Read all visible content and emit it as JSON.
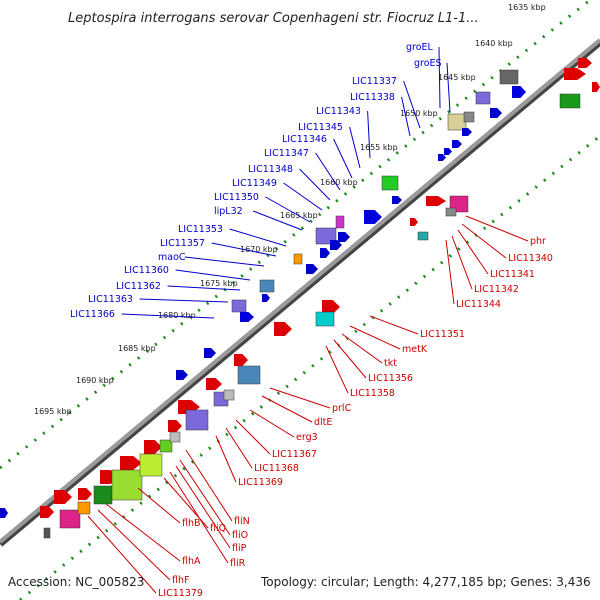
{
  "title": "Leptospira interrogans serovar Copenhageni str. Fiocruz L1-1...",
  "footer": {
    "accession": "Accession: NC_005823",
    "summary": "Topology: circular; Length: 4,277,185 bp; Genes: 3,436"
  },
  "colors": {
    "backbone": "#808080",
    "forward_track": "#1a8a1a",
    "blue_label": "#0000cc",
    "red_label": "#cc0000"
  },
  "ticks": [
    "1635 kbp",
    "1640 kbp",
    "1645 kbp",
    "1650 kbp",
    "1655 kbp",
    "1660 kbp",
    "1665 kbp",
    "1670 kbp",
    "1675 kbp",
    "1680 kbp",
    "1685 kbp",
    "1690 kbp",
    "1695 kbp"
  ],
  "labels_top": [
    "groEL",
    "groES",
    "LIC11337",
    "LIC11338",
    "LIC11343",
    "LIC11345",
    "LIC11346",
    "LIC11347",
    "LIC11348",
    "LIC11349",
    "LIC11350",
    "lipL32",
    "LIC11353",
    "LIC11357",
    "maoC",
    "LIC11360",
    "LIC11362",
    "LIC11363",
    "LIC11366"
  ],
  "labels_bottom": [
    "phr",
    "LIC11340",
    "LIC11341",
    "LIC11342",
    "LIC11344",
    "LIC11351",
    "metK",
    "tkt",
    "LIC11356",
    "LIC11358",
    "prlC",
    "dltE",
    "erg3",
    "LIC11367",
    "LIC11368",
    "LIC11369",
    "fliN",
    "fliO",
    "fliP",
    "fliR",
    "fliQ",
    "flhB",
    "flhA",
    "flhF",
    "LIC11379"
  ]
}
